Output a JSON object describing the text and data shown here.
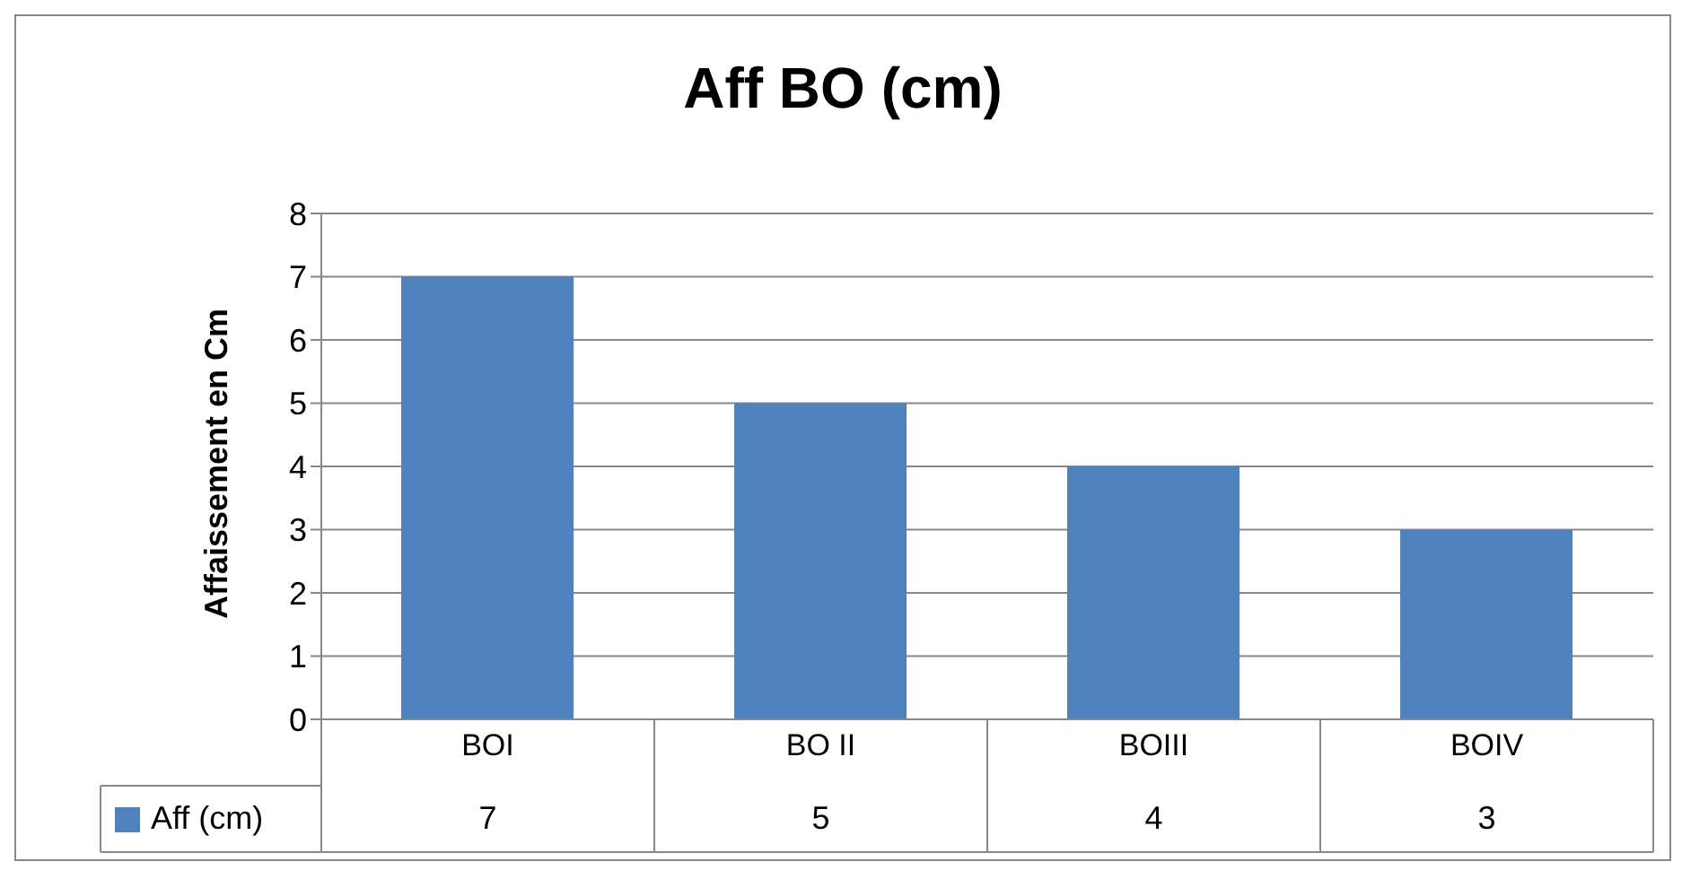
{
  "chart_data": {
    "type": "bar",
    "title": "Aff BO (cm)",
    "ylabel": "Affaissement en Cm",
    "categories": [
      "BOI",
      "BO II",
      "BOIII",
      "BOIV"
    ],
    "series": [
      {
        "name": "Aff (cm)",
        "color": "#4f81bd",
        "values": [
          7,
          5,
          4,
          3
        ]
      }
    ],
    "ylim": [
      0,
      8
    ],
    "yticks": [
      0,
      1,
      2,
      3,
      4,
      5,
      6,
      7,
      8
    ],
    "grid": "y",
    "legend": "bottom",
    "data_labels": true
  }
}
